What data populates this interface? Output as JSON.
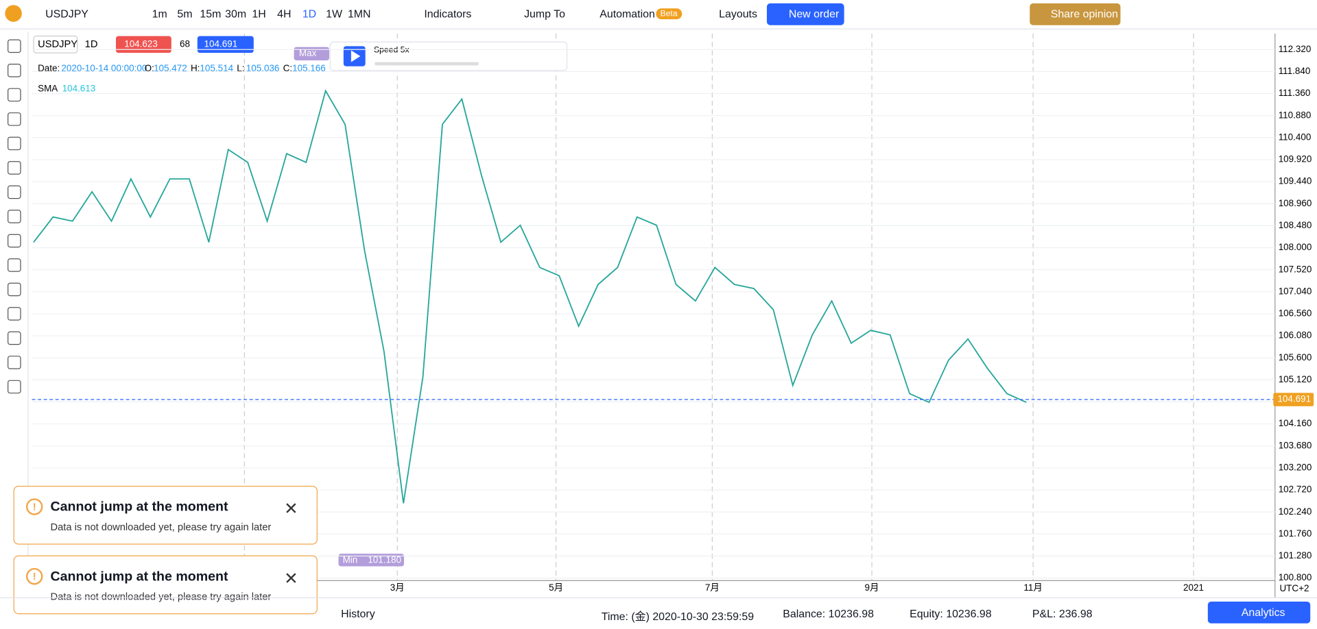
{
  "toolbar": {
    "symbol": "USDJPY",
    "timeframes": [
      "1m",
      "5m",
      "15m",
      "30m",
      "1H",
      "4H",
      "1D",
      "1W",
      "1MN"
    ],
    "indicators": "Indicators",
    "jump_to": "Jump To",
    "automation": "Automation",
    "beta": "Beta",
    "layouts": "Layouts",
    "new_order": "New order",
    "share": "Share opinion"
  },
  "legend": {
    "symbol": "USDJPY",
    "interval": "1D",
    "bid": "104.623",
    "spread": "68",
    "ask": "104.691",
    "date_label": "Date:",
    "date": "2020-10-14 00:00:00",
    "o_label": "O:",
    "o": "105.472",
    "h_label": "H:",
    "h": "105.514",
    "l_label": "L:",
    "l": "105.036",
    "c_label": "C:",
    "c": "105.166",
    "sma_label": "SMA",
    "sma": "104.613"
  },
  "player": {
    "max": "Max",
    "speed": "Speed 5x",
    "min": "Min",
    "min_value": "101.180"
  },
  "chart_data": {
    "type": "line",
    "color": "#26a69a",
    "values": [
      108.12,
      108.67,
      108.58,
      109.22,
      108.58,
      109.5,
      108.67,
      109.5,
      109.5,
      108.12,
      110.14,
      109.86,
      108.58,
      110.05,
      109.86,
      111.42,
      110.69,
      107.94,
      105.74,
      102.43,
      105.19,
      110.69,
      111.24,
      109.59,
      108.12,
      108.49,
      107.57,
      107.39,
      106.29,
      107.2,
      107.57,
      108.67,
      108.49,
      107.2,
      106.84,
      107.57,
      107.2,
      107.11,
      106.65,
      105.0,
      106.1,
      106.84,
      105.92,
      106.2,
      106.1,
      104.82,
      104.63,
      105.55,
      106.01,
      105.37,
      104.82,
      104.63
    ],
    "current": {
      "value": 104.691,
      "label": "104.691"
    },
    "ylim": [
      100.745,
      112.668
    ],
    "yticks": [
      {
        "value": 112.32,
        "label": "112.320"
      },
      {
        "value": 111.84,
        "label": "111.840"
      },
      {
        "value": 111.36,
        "label": "111.360"
      },
      {
        "value": 110.88,
        "label": "110.880"
      },
      {
        "value": 110.4,
        "label": "110.400"
      },
      {
        "value": 109.92,
        "label": "109.920"
      },
      {
        "value": 109.44,
        "label": "109.440"
      },
      {
        "value": 108.96,
        "label": "108.960"
      },
      {
        "value": 108.48,
        "label": "108.480"
      },
      {
        "value": 108.0,
        "label": "108.000"
      },
      {
        "value": 107.52,
        "label": "107.520"
      },
      {
        "value": 107.04,
        "label": "107.040"
      },
      {
        "value": 106.56,
        "label": "106.560"
      },
      {
        "value": 106.08,
        "label": "106.080"
      },
      {
        "value": 105.6,
        "label": "105.600"
      },
      {
        "value": 105.12,
        "label": "105.120"
      },
      {
        "value": 104.64,
        "label": "104.640"
      },
      {
        "value": 104.16,
        "label": "104.160"
      },
      {
        "value": 103.68,
        "label": "103.680"
      },
      {
        "value": 103.2,
        "label": "103.200"
      },
      {
        "value": 102.72,
        "label": "102.720"
      },
      {
        "value": 102.24,
        "label": "102.240"
      },
      {
        "value": 101.76,
        "label": "101.760"
      },
      {
        "value": 101.28,
        "label": "101.280"
      },
      {
        "value": 100.8,
        "label": "100.800"
      }
    ],
    "x_labels": [
      "3月",
      "5月",
      "7月",
      "9月",
      "11月",
      "2021"
    ],
    "timezone": "UTC+2",
    "grid": true
  },
  "toasts": [
    {
      "title": "Cannot jump at the moment",
      "text": "Data is not downloaded yet, please try again later"
    },
    {
      "title": "Cannot jump at the moment",
      "text": "Data is not downloaded yet, please try again later"
    }
  ],
  "footer": {
    "history": "History",
    "time": "Time: (金) 2020-10-30 23:59:59",
    "balance": "Balance: 10236.98",
    "equity": "Equity: 10236.98",
    "pnl": "P&L: 236.98",
    "analytics": "Analytics"
  }
}
